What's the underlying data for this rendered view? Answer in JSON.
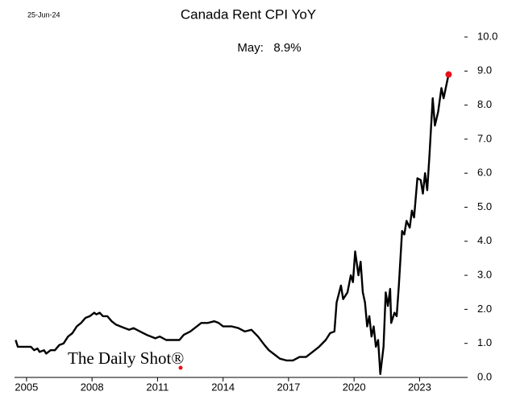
{
  "chart_data": {
    "type": "line",
    "title": "Canada Rent CPI YoY",
    "date": "25-Jun-24",
    "annotation": "May:   8.9%",
    "source": "The Daily Shot®",
    "x": [
      2004.5,
      2004.6,
      2004.9,
      2005.2,
      2005.35,
      2005.5,
      2005.6,
      2005.8,
      2005.9,
      2006.1,
      2006.3,
      2006.5,
      2006.7,
      2006.9,
      2007.1,
      2007.3,
      2007.5,
      2007.7,
      2007.9,
      2008.1,
      2008.2,
      2008.35,
      2008.5,
      2008.7,
      2008.9,
      2009.1,
      2009.3,
      2009.5,
      2009.7,
      2009.9,
      2010.2,
      2010.5,
      2010.7,
      2010.9,
      2011.1,
      2011.4,
      2011.8,
      2012.0,
      2012.2,
      2012.5,
      2012.8,
      2013.0,
      2013.3,
      2013.6,
      2013.8,
      2014.0,
      2014.4,
      2014.7,
      2015.0,
      2015.3,
      2015.6,
      2015.9,
      2016.1,
      2016.4,
      2016.6,
      2016.9,
      2017.2,
      2017.5,
      2017.8,
      2018.1,
      2018.4,
      2018.7,
      2018.9,
      2019.1,
      2019.2,
      2019.4,
      2019.5,
      2019.7,
      2019.85,
      2019.95,
      2020.05,
      2020.2,
      2020.3,
      2020.4,
      2020.5,
      2020.6,
      2020.7,
      2020.8,
      2020.9,
      2021.0,
      2021.1,
      2021.2,
      2021.35,
      2021.45,
      2021.55,
      2021.65,
      2021.7,
      2021.85,
      2021.95,
      2022.05,
      2022.2,
      2022.3,
      2022.4,
      2022.55,
      2022.65,
      2022.75,
      2022.9,
      2023.05,
      2023.15,
      2023.25,
      2023.35,
      2023.45,
      2023.6,
      2023.7,
      2023.85,
      2024.0,
      2024.1,
      2024.33
    ],
    "series": [
      {
        "name": "Rent CPI YoY",
        "color": "#000000",
        "values": [
          1.1,
          0.9,
          0.9,
          0.9,
          0.8,
          0.85,
          0.75,
          0.8,
          0.7,
          0.8,
          0.8,
          0.95,
          1.0,
          1.2,
          1.3,
          1.5,
          1.6,
          1.75,
          1.8,
          1.9,
          1.85,
          1.9,
          1.8,
          1.8,
          1.65,
          1.55,
          1.5,
          1.45,
          1.4,
          1.45,
          1.35,
          1.25,
          1.2,
          1.15,
          1.2,
          1.1,
          1.1,
          1.1,
          1.25,
          1.35,
          1.5,
          1.6,
          1.6,
          1.65,
          1.6,
          1.5,
          1.5,
          1.45,
          1.35,
          1.4,
          1.2,
          0.95,
          0.8,
          0.65,
          0.55,
          0.5,
          0.5,
          0.6,
          0.6,
          0.75,
          0.9,
          1.1,
          1.3,
          1.35,
          2.2,
          2.7,
          2.3,
          2.5,
          3.0,
          2.8,
          3.7,
          3.0,
          3.4,
          2.5,
          2.2,
          1.5,
          1.8,
          1.2,
          1.5,
          0.9,
          1.1,
          0.1,
          0.9,
          2.5,
          2.1,
          2.6,
          1.6,
          1.9,
          1.8,
          2.7,
          4.3,
          4.2,
          4.6,
          4.4,
          4.9,
          4.7,
          5.85,
          5.8,
          5.4,
          6.0,
          5.5,
          6.5,
          8.2,
          7.4,
          7.8,
          8.5,
          8.2,
          8.9
        ]
      }
    ],
    "highlight_color": "#e8101a",
    "xlim": [
      2004.45,
      2025.2
    ],
    "xticks": [
      2005,
      2008,
      2011,
      2014,
      2017,
      2020,
      2023
    ],
    "ylim": [
      0,
      10
    ],
    "yticks": [
      {
        "value": 0,
        "label": "0.0"
      },
      {
        "value": 1,
        "label": "1.0"
      },
      {
        "value": 2,
        "label": "2.0"
      },
      {
        "value": 3,
        "label": "3.0"
      },
      {
        "value": 4,
        "label": "4.0"
      },
      {
        "value": 5,
        "label": "5.0"
      },
      {
        "value": 6,
        "label": "6.0"
      },
      {
        "value": 7,
        "label": "7.0"
      },
      {
        "value": 8,
        "label": "8.0"
      },
      {
        "value": 9,
        "label": "9.0"
      },
      {
        "value": 10,
        "label": "10.0"
      }
    ]
  }
}
